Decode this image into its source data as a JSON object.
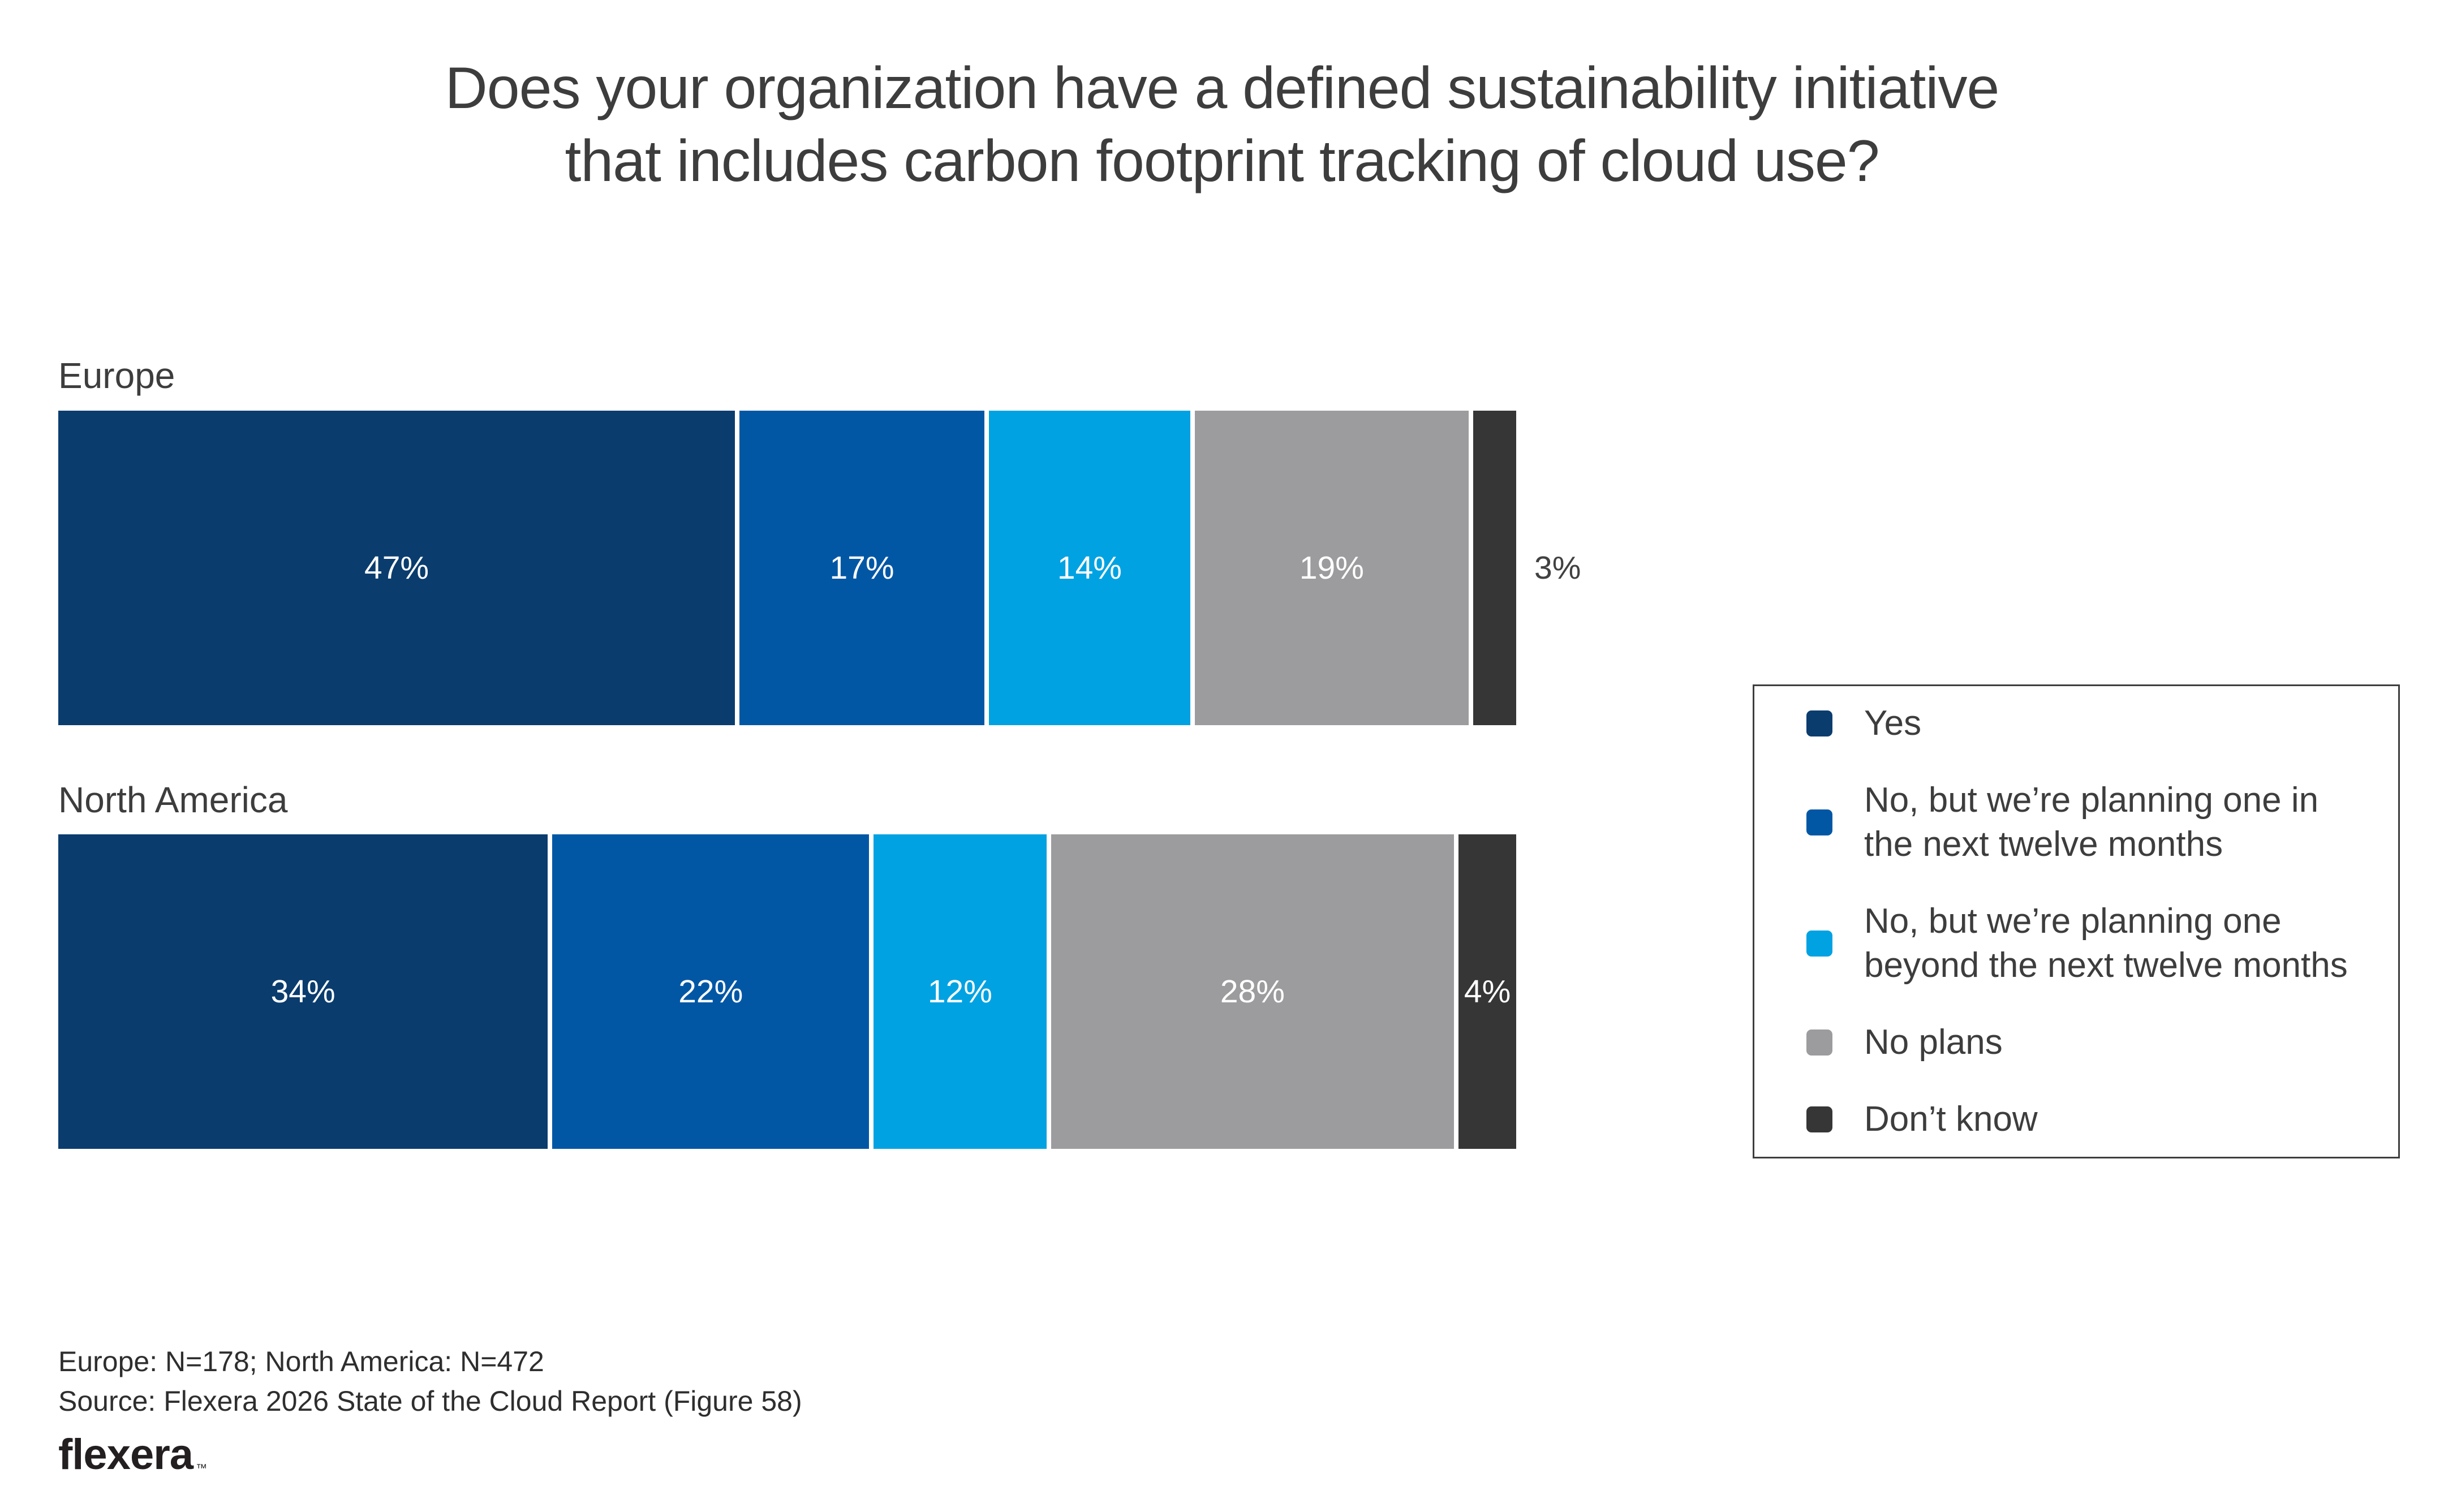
{
  "title": {
    "line1": "Does your organization have a defined sustainability initiative",
    "line2": "that includes carbon footprint tracking of cloud use?"
  },
  "chart_data": {
    "type": "bar",
    "variant": "horizontal-stacked",
    "unit": "percent",
    "xlim": [
      0,
      100
    ],
    "grid": false,
    "legend_position": "right",
    "categories": [
      "Europe",
      "North America"
    ],
    "series": [
      {
        "name": "Yes",
        "color": "#0A3C6E",
        "values": [
          47,
          34
        ]
      },
      {
        "name": "No, but we’re planning one in the next twelve months",
        "color": "#0257A5",
        "values": [
          17,
          22
        ]
      },
      {
        "name": "No, but we’re planning one beyond the next twelve months",
        "color": "#00A2E2",
        "values": [
          14,
          12
        ]
      },
      {
        "name": "No plans",
        "color": "#9C9C9E",
        "values": [
          19,
          28
        ]
      },
      {
        "name": "Don’t know",
        "color": "#363636",
        "values": [
          3,
          4
        ]
      }
    ],
    "value_label_suffix": "%",
    "outside_label_max": 3
  },
  "legend": {
    "items": [
      {
        "label": "Yes"
      },
      {
        "label": "No, but we’re planning one in\nthe next twelve months"
      },
      {
        "label": "No, but we’re planning one\nbeyond the next twelve months"
      },
      {
        "label": "No plans"
      },
      {
        "label": "Don’t know"
      }
    ]
  },
  "footer": {
    "sample_note": "Europe: N=178; North America: N=472",
    "source_note": "Source: Flexera 2026 State of the Cloud Report (Figure 58)",
    "logo_text": "flexera",
    "trademark": "™"
  },
  "colors": {
    "text": "#3D3D3D",
    "label_on_bar": "#FFFFFF",
    "outside_label": "#414141",
    "legend_border": "#3E3E3E",
    "background": "#FFFFFF"
  }
}
